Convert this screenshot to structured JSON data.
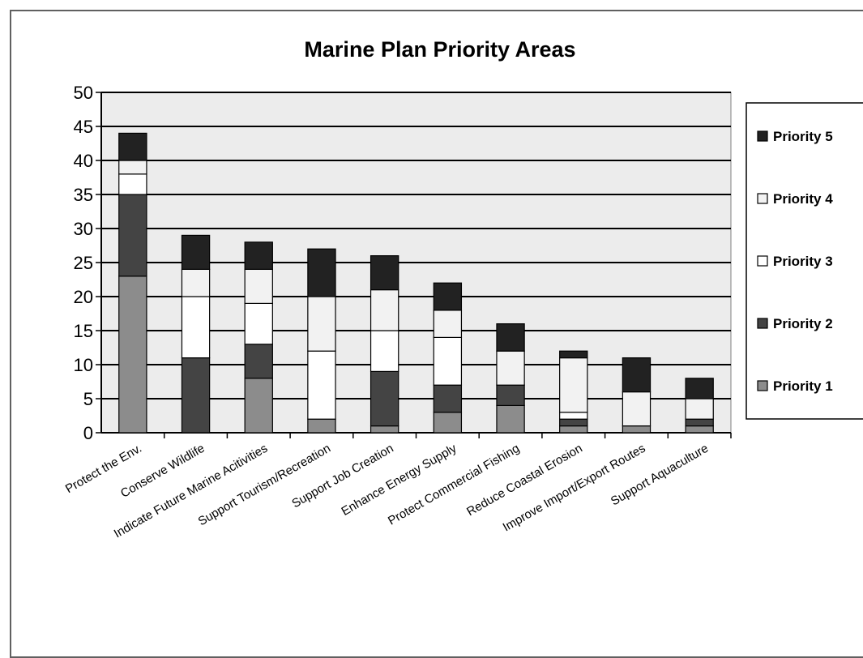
{
  "chart_data": {
    "type": "bar",
    "stacked": true,
    "title": "Marine Plan Priority Areas",
    "xlabel": "",
    "ylabel": "",
    "ylim": [
      0,
      50
    ],
    "yticks": [
      0,
      5,
      10,
      15,
      20,
      25,
      30,
      35,
      40,
      45,
      50
    ],
    "grid": true,
    "legend_position": "right",
    "categories": [
      "Protect the Env.",
      "Conserve Wildlife",
      "Indicate Future Marine Acitivities",
      "Support Tourism/Recreation",
      "Support Job Creation",
      "Enhance Energy Supply",
      "Protect Commercial Fishing",
      "Reduce Coastal Erosion",
      "Improve Import/Export Routes",
      "Support Aquaculture"
    ],
    "series": [
      {
        "name": "Priority 1",
        "color": "#8c8c8c",
        "values": [
          23,
          0,
          8,
          2,
          1,
          3,
          4,
          1,
          1,
          1
        ]
      },
      {
        "name": "Priority 2",
        "color": "#444444",
        "values": [
          12,
          11,
          5,
          0,
          8,
          4,
          3,
          1,
          0,
          1
        ]
      },
      {
        "name": "Priority 3",
        "color": "#ffffff",
        "values": [
          3,
          9,
          6,
          10,
          6,
          7,
          0,
          1,
          0,
          0
        ]
      },
      {
        "name": "Priority 4",
        "color": "#f2f2f2",
        "values": [
          2,
          4,
          5,
          8,
          6,
          4,
          5,
          8,
          5,
          3
        ]
      },
      {
        "name": "Priority 5",
        "color": "#222222",
        "values": [
          4,
          5,
          4,
          7,
          5,
          4,
          4,
          1,
          5,
          3
        ]
      }
    ]
  }
}
